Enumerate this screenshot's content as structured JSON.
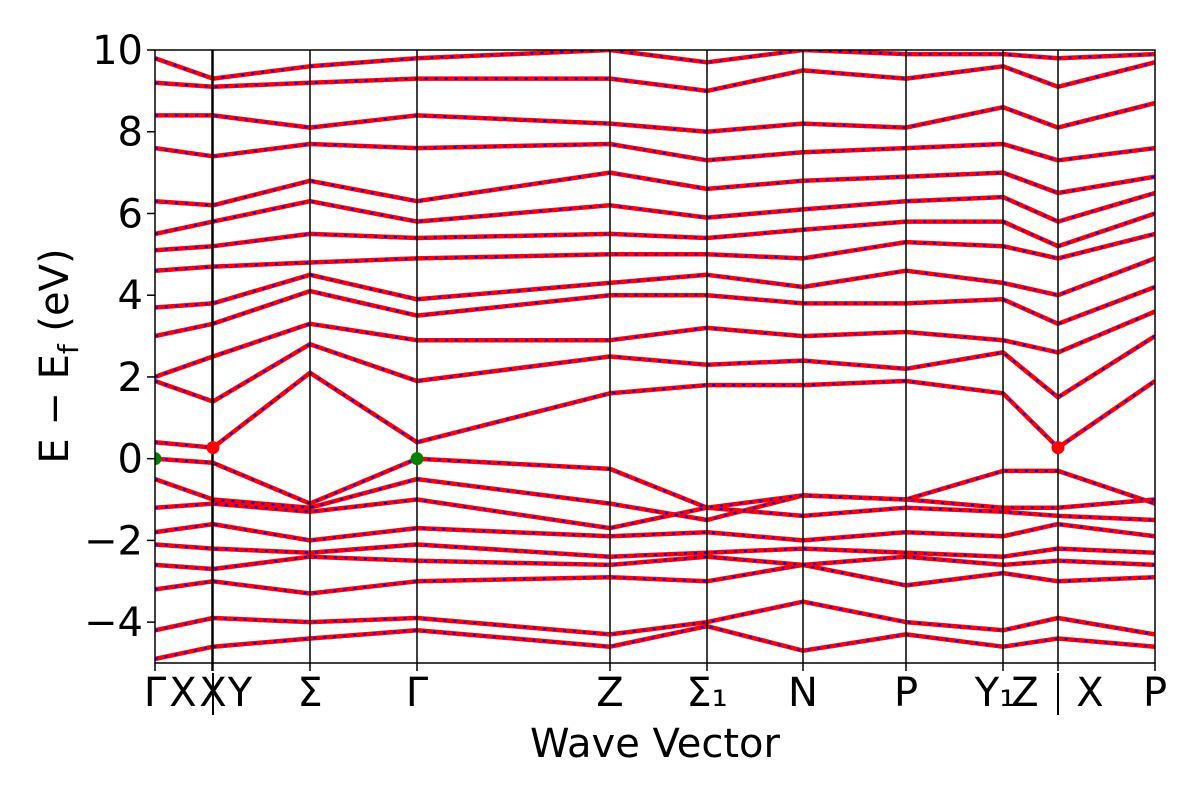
{
  "chart_data": {
    "type": "line",
    "title": "",
    "xlabel": "Wave Vector",
    "ylabel": "E − E",
    "ylabel_sub": "f",
    "ylabel_unit": " (eV)",
    "ylim": [
      -5,
      10
    ],
    "yticks": [
      "−4",
      "−2",
      "0",
      "2",
      "4",
      "6",
      "8",
      "10"
    ],
    "ytick_values": [
      -4,
      -2,
      0,
      2,
      4,
      6,
      8,
      10
    ],
    "x_segments": [
      {
        "x": 0.0,
        "label": "Γ"
      },
      {
        "x": 0.057,
        "label": "X"
      },
      {
        "x": 0.058,
        "label": "X|Y"
      },
      {
        "x": 0.155,
        "label": "Σ"
      },
      {
        "x": 0.262,
        "label": "Γ"
      },
      {
        "x": 0.455,
        "label": "Z"
      },
      {
        "x": 0.552,
        "label": "Σ1"
      },
      {
        "x": 0.648,
        "label": "N"
      },
      {
        "x": 0.751,
        "label": "P"
      },
      {
        "x": 0.848,
        "label": "Y1"
      },
      {
        "x": 0.903,
        "label": "Z|X"
      },
      {
        "x": 1.0,
        "label": "P"
      }
    ],
    "xtick_text": [
      {
        "x": 0.0,
        "label": "Γ"
      },
      {
        "x": 0.028,
        "label": "X"
      },
      {
        "x": 0.058,
        "label": "X"
      },
      {
        "x": 0.085,
        "label": "Y"
      },
      {
        "x": 0.155,
        "label": "Σ"
      },
      {
        "x": 0.262,
        "label": "Γ"
      },
      {
        "x": 0.455,
        "label": "Z"
      },
      {
        "x": 0.552,
        "label": "Σ₁"
      },
      {
        "x": 0.648,
        "label": "N"
      },
      {
        "x": 0.751,
        "label": "P"
      },
      {
        "x": 0.84,
        "label": "Y₁"
      },
      {
        "x": 0.87,
        "label": "Z"
      },
      {
        "x": 0.935,
        "label": "X"
      },
      {
        "x": 1.0,
        "label": "P"
      }
    ],
    "series_colors": {
      "primary": "#ff0000",
      "overlay": "#0000ff"
    },
    "markers": [
      {
        "x": 0.0,
        "y": 0.0,
        "color": "#008000"
      },
      {
        "x": 0.262,
        "y": 0.0,
        "color": "#008000"
      },
      {
        "x": 0.058,
        "y": 0.27,
        "color": "#ff0000"
      },
      {
        "x": 0.903,
        "y": 0.27,
        "color": "#ff0000"
      }
    ],
    "bands": [
      {
        "x": [
          0,
          0.058,
          0.155,
          0.262,
          0.455,
          0.552,
          0.648,
          0.751,
          0.848,
          0.903,
          1
        ],
        "y": [
          -4.9,
          -4.6,
          -4.4,
          -4.2,
          -4.6,
          -4.1,
          -4.7,
          -4.3,
          -4.6,
          -4.4,
          -4.6
        ]
      },
      {
        "x": [
          0,
          0.058,
          0.155,
          0.262,
          0.455,
          0.552,
          0.648,
          0.751,
          0.848,
          0.903,
          1
        ],
        "y": [
          -4.2,
          -3.9,
          -4.0,
          -3.9,
          -4.3,
          -4.0,
          -3.5,
          -4.0,
          -4.2,
          -3.9,
          -4.3
        ]
      },
      {
        "x": [
          0,
          0.058,
          0.155,
          0.262,
          0.455,
          0.552,
          0.648,
          0.751,
          0.848,
          0.903,
          1
        ],
        "y": [
          -3.2,
          -3.0,
          -3.3,
          -3.0,
          -2.9,
          -3.0,
          -2.6,
          -3.1,
          -2.8,
          -3.0,
          -2.9
        ]
      },
      {
        "x": [
          0,
          0.058,
          0.155,
          0.262,
          0.455,
          0.552,
          0.648,
          0.751,
          0.848,
          0.903,
          1
        ],
        "y": [
          -2.6,
          -2.7,
          -2.4,
          -2.5,
          -2.6,
          -2.4,
          -2.6,
          -2.4,
          -2.6,
          -2.5,
          -2.6
        ]
      },
      {
        "x": [
          0,
          0.058,
          0.155,
          0.262,
          0.455,
          0.552,
          0.648,
          0.751,
          0.848,
          0.903,
          1
        ],
        "y": [
          -2.1,
          -2.2,
          -2.3,
          -2.1,
          -2.4,
          -2.3,
          -2.2,
          -2.3,
          -2.4,
          -2.2,
          -2.3
        ]
      },
      {
        "x": [
          0,
          0.058,
          0.155,
          0.262,
          0.455,
          0.552,
          0.648,
          0.751,
          0.848,
          0.903,
          1
        ],
        "y": [
          -1.8,
          -1.6,
          -2.0,
          -1.7,
          -1.9,
          -1.8,
          -2.0,
          -1.8,
          -1.9,
          -1.6,
          -1.9
        ]
      },
      {
        "x": [
          0,
          0.058,
          0.155,
          0.262,
          0.455,
          0.552,
          0.648,
          0.751,
          0.848,
          0.903,
          1
        ],
        "y": [
          -1.2,
          -1.1,
          -1.3,
          -1.0,
          -1.7,
          -1.2,
          -1.4,
          -1.2,
          -1.3,
          -1.4,
          -1.5
        ]
      },
      {
        "x": [
          0,
          0.058,
          0.155,
          0.262,
          0.455,
          0.552,
          0.648,
          0.751,
          0.848,
          0.903,
          1
        ],
        "y": [
          -0.5,
          -1.0,
          -1.2,
          -0.5,
          -1.1,
          -1.5,
          -0.9,
          -1.0,
          -1.2,
          -1.2,
          -1.0
        ]
      },
      {
        "x": [
          0,
          0.058,
          0.155,
          0.262,
          0.455,
          0.552,
          0.648,
          0.751,
          0.848,
          0.903,
          1
        ],
        "y": [
          0.0,
          -0.1,
          -1.1,
          0.0,
          -0.25,
          -1.2,
          -0.9,
          -1.0,
          -0.3,
          -0.3,
          -1.1
        ]
      },
      {
        "x": [
          0,
          0.058,
          0.155,
          0.262,
          0.455,
          0.552,
          0.648,
          0.751,
          0.848,
          0.903,
          1
        ],
        "y": [
          0.4,
          0.27,
          2.1,
          0.4,
          1.6,
          1.8,
          1.8,
          1.9,
          1.6,
          0.27,
          1.9
        ]
      },
      {
        "x": [
          0,
          0.058,
          0.155,
          0.262,
          0.455,
          0.552,
          0.648,
          0.751,
          0.848,
          0.903,
          1
        ],
        "y": [
          1.9,
          1.4,
          2.8,
          1.9,
          2.5,
          2.3,
          2.4,
          2.2,
          2.6,
          1.5,
          3.0
        ]
      },
      {
        "x": [
          0,
          0.058,
          0.155,
          0.262,
          0.455,
          0.552,
          0.648,
          0.751,
          0.848,
          0.903,
          1
        ],
        "y": [
          2.0,
          2.5,
          3.3,
          2.9,
          2.9,
          3.2,
          3.0,
          3.1,
          2.9,
          2.6,
          3.6
        ]
      },
      {
        "x": [
          0,
          0.058,
          0.155,
          0.262,
          0.455,
          0.552,
          0.648,
          0.751,
          0.848,
          0.903,
          1
        ],
        "y": [
          3.0,
          3.3,
          4.1,
          3.5,
          4.0,
          4.0,
          3.8,
          3.8,
          3.9,
          3.3,
          4.2
        ]
      },
      {
        "x": [
          0,
          0.058,
          0.155,
          0.262,
          0.455,
          0.552,
          0.648,
          0.751,
          0.848,
          0.903,
          1
        ],
        "y": [
          3.7,
          3.8,
          4.5,
          3.9,
          4.3,
          4.5,
          4.2,
          4.6,
          4.3,
          4.0,
          4.9
        ]
      },
      {
        "x": [
          0,
          0.058,
          0.155,
          0.262,
          0.455,
          0.552,
          0.648,
          0.751,
          0.848,
          0.903,
          1
        ],
        "y": [
          4.6,
          4.7,
          4.8,
          4.9,
          5.0,
          5.0,
          4.9,
          5.3,
          5.2,
          4.9,
          5.5
        ]
      },
      {
        "x": [
          0,
          0.058,
          0.155,
          0.262,
          0.455,
          0.552,
          0.648,
          0.751,
          0.848,
          0.903,
          1
        ],
        "y": [
          5.1,
          5.2,
          5.5,
          5.4,
          5.5,
          5.4,
          5.6,
          5.8,
          5.8,
          5.2,
          6.0
        ]
      },
      {
        "x": [
          0,
          0.058,
          0.155,
          0.262,
          0.455,
          0.552,
          0.648,
          0.751,
          0.848,
          0.903,
          1
        ],
        "y": [
          5.5,
          5.8,
          6.3,
          5.8,
          6.2,
          5.9,
          6.1,
          6.3,
          6.4,
          5.8,
          6.5
        ]
      },
      {
        "x": [
          0,
          0.058,
          0.155,
          0.262,
          0.455,
          0.552,
          0.648,
          0.751,
          0.848,
          0.903,
          1
        ],
        "y": [
          6.3,
          6.2,
          6.8,
          6.3,
          7.0,
          6.6,
          6.8,
          6.9,
          7.0,
          6.5,
          6.9
        ]
      },
      {
        "x": [
          0,
          0.058,
          0.155,
          0.262,
          0.455,
          0.552,
          0.648,
          0.751,
          0.848,
          0.903,
          1
        ],
        "y": [
          7.6,
          7.4,
          7.7,
          7.6,
          7.7,
          7.3,
          7.5,
          7.6,
          7.7,
          7.3,
          7.6
        ]
      },
      {
        "x": [
          0,
          0.058,
          0.155,
          0.262,
          0.455,
          0.552,
          0.648,
          0.751,
          0.848,
          0.903,
          1
        ],
        "y": [
          8.4,
          8.4,
          8.1,
          8.4,
          8.2,
          8.0,
          8.2,
          8.1,
          8.6,
          8.1,
          8.7
        ]
      },
      {
        "x": [
          0,
          0.058,
          0.155,
          0.262,
          0.455,
          0.552,
          0.648,
          0.751,
          0.848,
          0.903,
          1
        ],
        "y": [
          9.2,
          9.1,
          9.2,
          9.3,
          9.3,
          9.0,
          9.5,
          9.3,
          9.6,
          9.1,
          9.7
        ]
      },
      {
        "x": [
          0,
          0.058,
          0.155,
          0.262,
          0.455,
          0.552,
          0.648,
          0.751,
          0.848,
          0.903,
          1
        ],
        "y": [
          9.8,
          9.3,
          9.6,
          9.8,
          10.0,
          9.7,
          10.0,
          9.9,
          9.9,
          9.8,
          9.9
        ]
      }
    ]
  }
}
